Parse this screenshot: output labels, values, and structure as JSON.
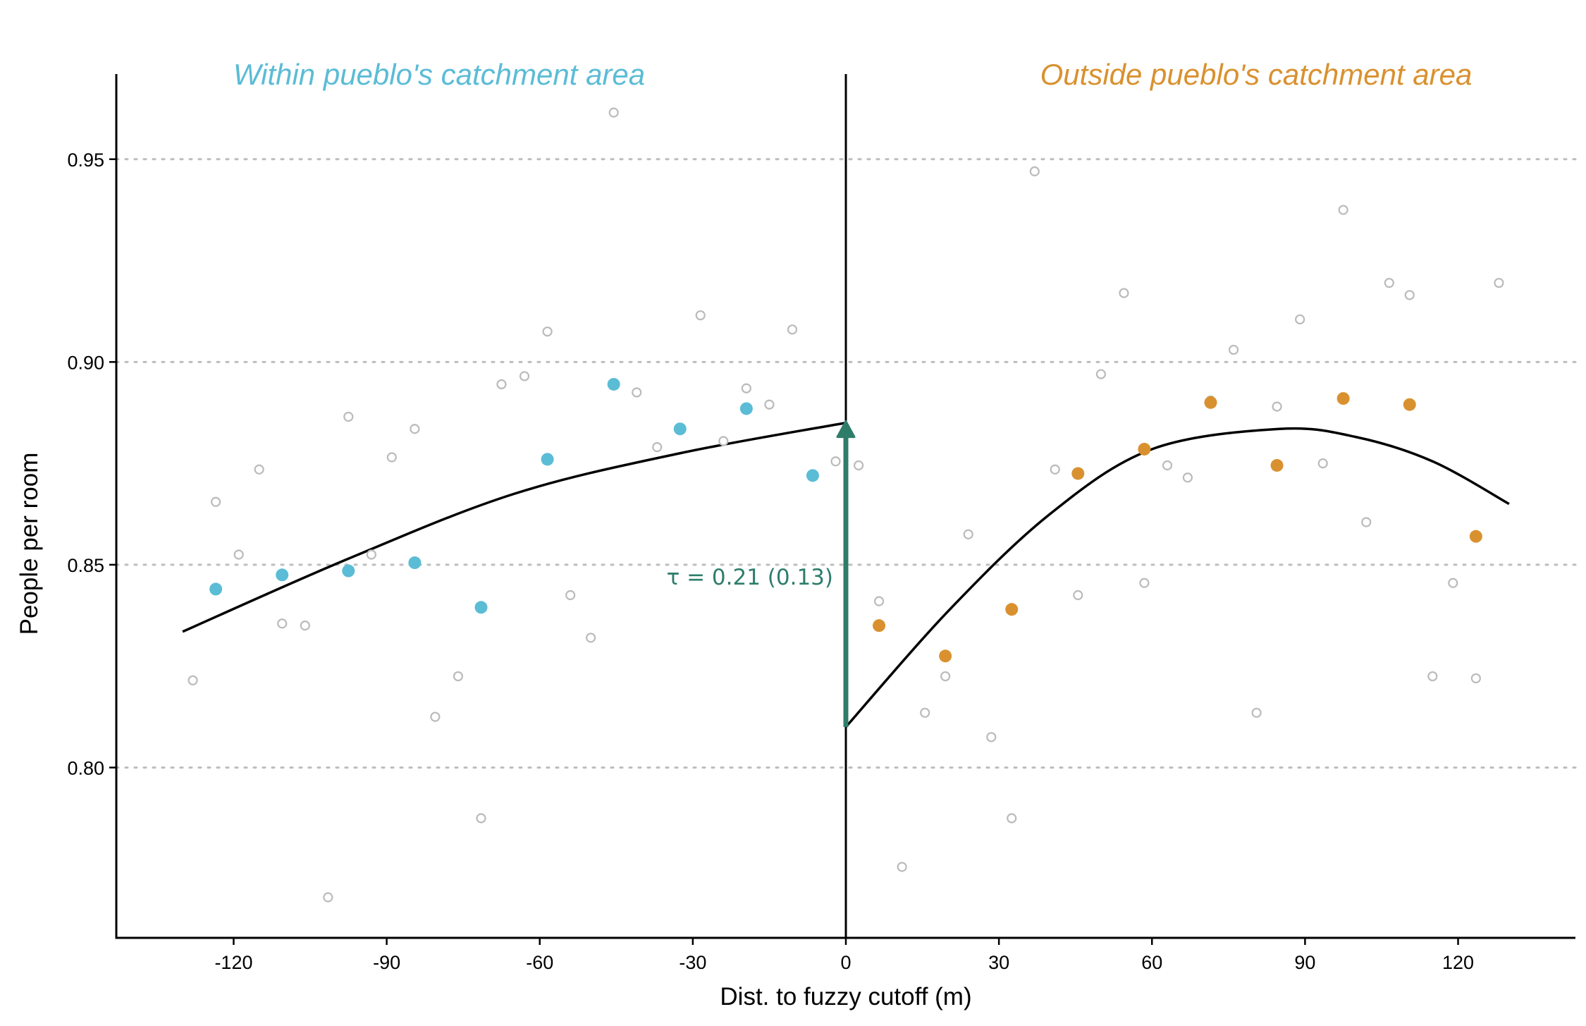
{
  "chart_data": {
    "type": "scatter",
    "xlabel": "Dist. to fuzzy cutoff (m)",
    "ylabel": "People per room",
    "xlim": [
      -143,
      143
    ],
    "ylim": [
      0.758,
      0.971
    ],
    "x_ticks": [
      -120,
      -90,
      -60,
      -30,
      0,
      30,
      60,
      90,
      120
    ],
    "x_tick_labels": [
      "-120",
      "-90",
      "-60",
      "-30",
      "0",
      "30",
      "60",
      "90",
      "120"
    ],
    "y_ticks": [
      0.8,
      0.85,
      0.9,
      0.95
    ],
    "y_tick_labels": [
      "0.80",
      "0.85",
      "0.90",
      "0.95"
    ],
    "grid": "horizontal dotted",
    "cutoff_x": 0,
    "colors": {
      "left": "#5bbcd6",
      "right": "#d9912f",
      "raw": "#bbbbbb",
      "effect": "#2e7d6b",
      "line": "#000000"
    },
    "regions": {
      "left": "Within pueblo's catchment area",
      "right": "Outside pueblo's catchment area"
    },
    "annotation": {
      "text": "τ =  0.21  (0.13)",
      "x": 0,
      "y_start": 0.81,
      "y_end": 0.885
    },
    "series": [
      {
        "role": "raw",
        "points": [
          [
            -45.5,
            0.9615
          ],
          [
            -128,
            0.8215
          ],
          [
            -123.5,
            0.8655
          ],
          [
            -119,
            0.8525
          ],
          [
            -115,
            0.8735
          ],
          [
            -110.5,
            0.8355
          ],
          [
            -106,
            0.835
          ],
          [
            -101.5,
            0.768
          ],
          [
            -97.5,
            0.8865
          ],
          [
            -93,
            0.8525
          ],
          [
            -89,
            0.8765
          ],
          [
            -84.5,
            0.8835
          ],
          [
            -80.5,
            0.8125
          ],
          [
            -76,
            0.8225
          ],
          [
            -71.5,
            0.7875
          ],
          [
            -67.5,
            0.8945
          ],
          [
            -63,
            0.8965
          ],
          [
            -58.5,
            0.9075
          ],
          [
            -54,
            0.8425
          ],
          [
            -50,
            0.832
          ],
          [
            -41,
            0.8925
          ],
          [
            -37,
            0.879
          ],
          [
            -28.5,
            0.9115
          ],
          [
            -24,
            0.8805
          ],
          [
            -19.5,
            0.8935
          ],
          [
            -15,
            0.8895
          ],
          [
            -10.5,
            0.908
          ],
          [
            -2,
            0.8755
          ],
          [
            2.5,
            0.8745
          ],
          [
            6.5,
            0.841
          ],
          [
            15.5,
            0.8135
          ],
          [
            19.5,
            0.8225
          ],
          [
            24,
            0.8575
          ],
          [
            28.5,
            0.8075
          ],
          [
            32.5,
            0.7875
          ],
          [
            37,
            0.947
          ],
          [
            41,
            0.8735
          ],
          [
            45.5,
            0.8425
          ],
          [
            50,
            0.897
          ],
          [
            54.5,
            0.917
          ],
          [
            58.5,
            0.8455
          ],
          [
            63,
            0.8745
          ],
          [
            67,
            0.8715
          ],
          [
            71.5,
            0.8905
          ],
          [
            76,
            0.903
          ],
          [
            80.5,
            0.8135
          ],
          [
            84.5,
            0.889
          ],
          [
            89,
            0.9105
          ],
          [
            93.5,
            0.875
          ],
          [
            97.5,
            0.9375
          ],
          [
            102,
            0.8605
          ],
          [
            106.5,
            0.9195
          ],
          [
            110.5,
            0.9165
          ],
          [
            115,
            0.8225
          ],
          [
            119,
            0.8455
          ],
          [
            123.5,
            0.822
          ],
          [
            128,
            0.9195
          ],
          [
            11,
            0.7755
          ]
        ]
      },
      {
        "role": "binned-left",
        "points": [
          [
            -123.5,
            0.844
          ],
          [
            -110.5,
            0.8475
          ],
          [
            -97.5,
            0.8485
          ],
          [
            -84.5,
            0.8505
          ],
          [
            -71.5,
            0.8395
          ],
          [
            -58.5,
            0.876
          ],
          [
            -45.5,
            0.8945
          ],
          [
            -32.5,
            0.8835
          ],
          [
            -19.5,
            0.8885
          ],
          [
            -6.5,
            0.872
          ]
        ]
      },
      {
        "role": "binned-right",
        "points": [
          [
            6.5,
            0.835
          ],
          [
            19.5,
            0.8275
          ],
          [
            32.5,
            0.839
          ],
          [
            45.5,
            0.8725
          ],
          [
            58.5,
            0.8785
          ],
          [
            71.5,
            0.89
          ],
          [
            84.5,
            0.8745
          ],
          [
            97.5,
            0.891
          ],
          [
            110.5,
            0.8895
          ],
          [
            123.5,
            0.857
          ]
        ]
      }
    ],
    "fits": [
      {
        "side": "left",
        "points": [
          [
            -130,
            0.8335
          ],
          [
            -97.5,
            0.8515
          ],
          [
            -65,
            0.8675
          ],
          [
            -32.5,
            0.8775
          ],
          [
            0,
            0.885
          ]
        ]
      },
      {
        "side": "right",
        "points": [
          [
            0,
            0.81
          ],
          [
            20,
            0.8385
          ],
          [
            40,
            0.8625
          ],
          [
            60,
            0.8785
          ],
          [
            85,
            0.8835
          ],
          [
            100,
            0.8815
          ],
          [
            115,
            0.8755
          ],
          [
            130,
            0.865
          ]
        ]
      }
    ]
  }
}
